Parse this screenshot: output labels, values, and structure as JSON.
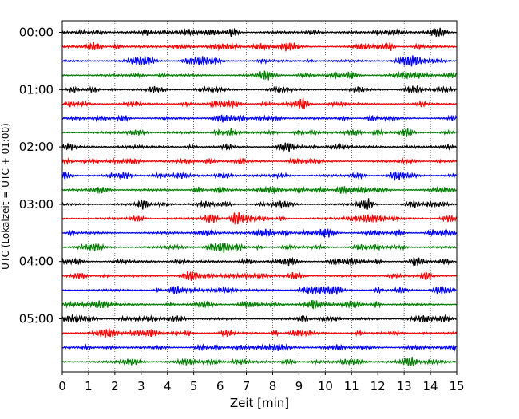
{
  "chart_data": {
    "type": "line",
    "subtype": "helicorder",
    "xlabel": "Zeit  [min]",
    "ylabel": "UTC (Lokalzeit = UTC + 01:00)",
    "xlim": [
      0,
      15
    ],
    "x_ticks": [
      "0",
      "1",
      "2",
      "3",
      "4",
      "5",
      "6",
      "7",
      "8",
      "9",
      "10",
      "11",
      "12",
      "13",
      "14",
      "15"
    ],
    "y_ticks": [
      "00:00",
      "01:00",
      "02:00",
      "03:00",
      "04:00",
      "05:00"
    ],
    "rows_per_hour": 4,
    "row_count": 24,
    "grid": "vertical-dotted",
    "legend": "none",
    "trace_colors": [
      "#000000",
      "#ff0000",
      "#0000ff",
      "#007f00"
    ]
  }
}
